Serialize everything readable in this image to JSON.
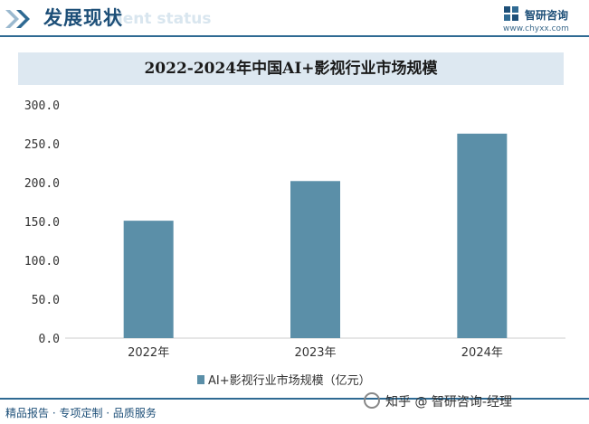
{
  "header": {
    "title": "发展现状",
    "ghost_text": "ment status",
    "logo_name": "智研咨询",
    "logo_url": "www.chyxx.com"
  },
  "chart_data": {
    "type": "bar",
    "title": "2022-2024年中国AI+影视行业市场规模",
    "categories": [
      "2022年",
      "2023年",
      "2024年"
    ],
    "series": [
      {
        "name": "AI+影视行业市场规模（亿元）",
        "values": [
          151,
          202,
          263
        ],
        "color": "#5b8fa8"
      }
    ],
    "ylim": [
      0,
      300
    ],
    "yticks": [
      "0.0",
      "50.0",
      "100.0",
      "150.0",
      "200.0",
      "250.0",
      "300.0"
    ],
    "grid": false,
    "legend": "bottom"
  },
  "footer": {
    "left_text": "精品报告 · 专项定制 · 品质服务",
    "credit": "知乎 @ 智研咨询-经理"
  },
  "colors": {
    "brand": "#1d4f78",
    "bar": "#5b8fa8",
    "title_band": "#dde8f1"
  }
}
